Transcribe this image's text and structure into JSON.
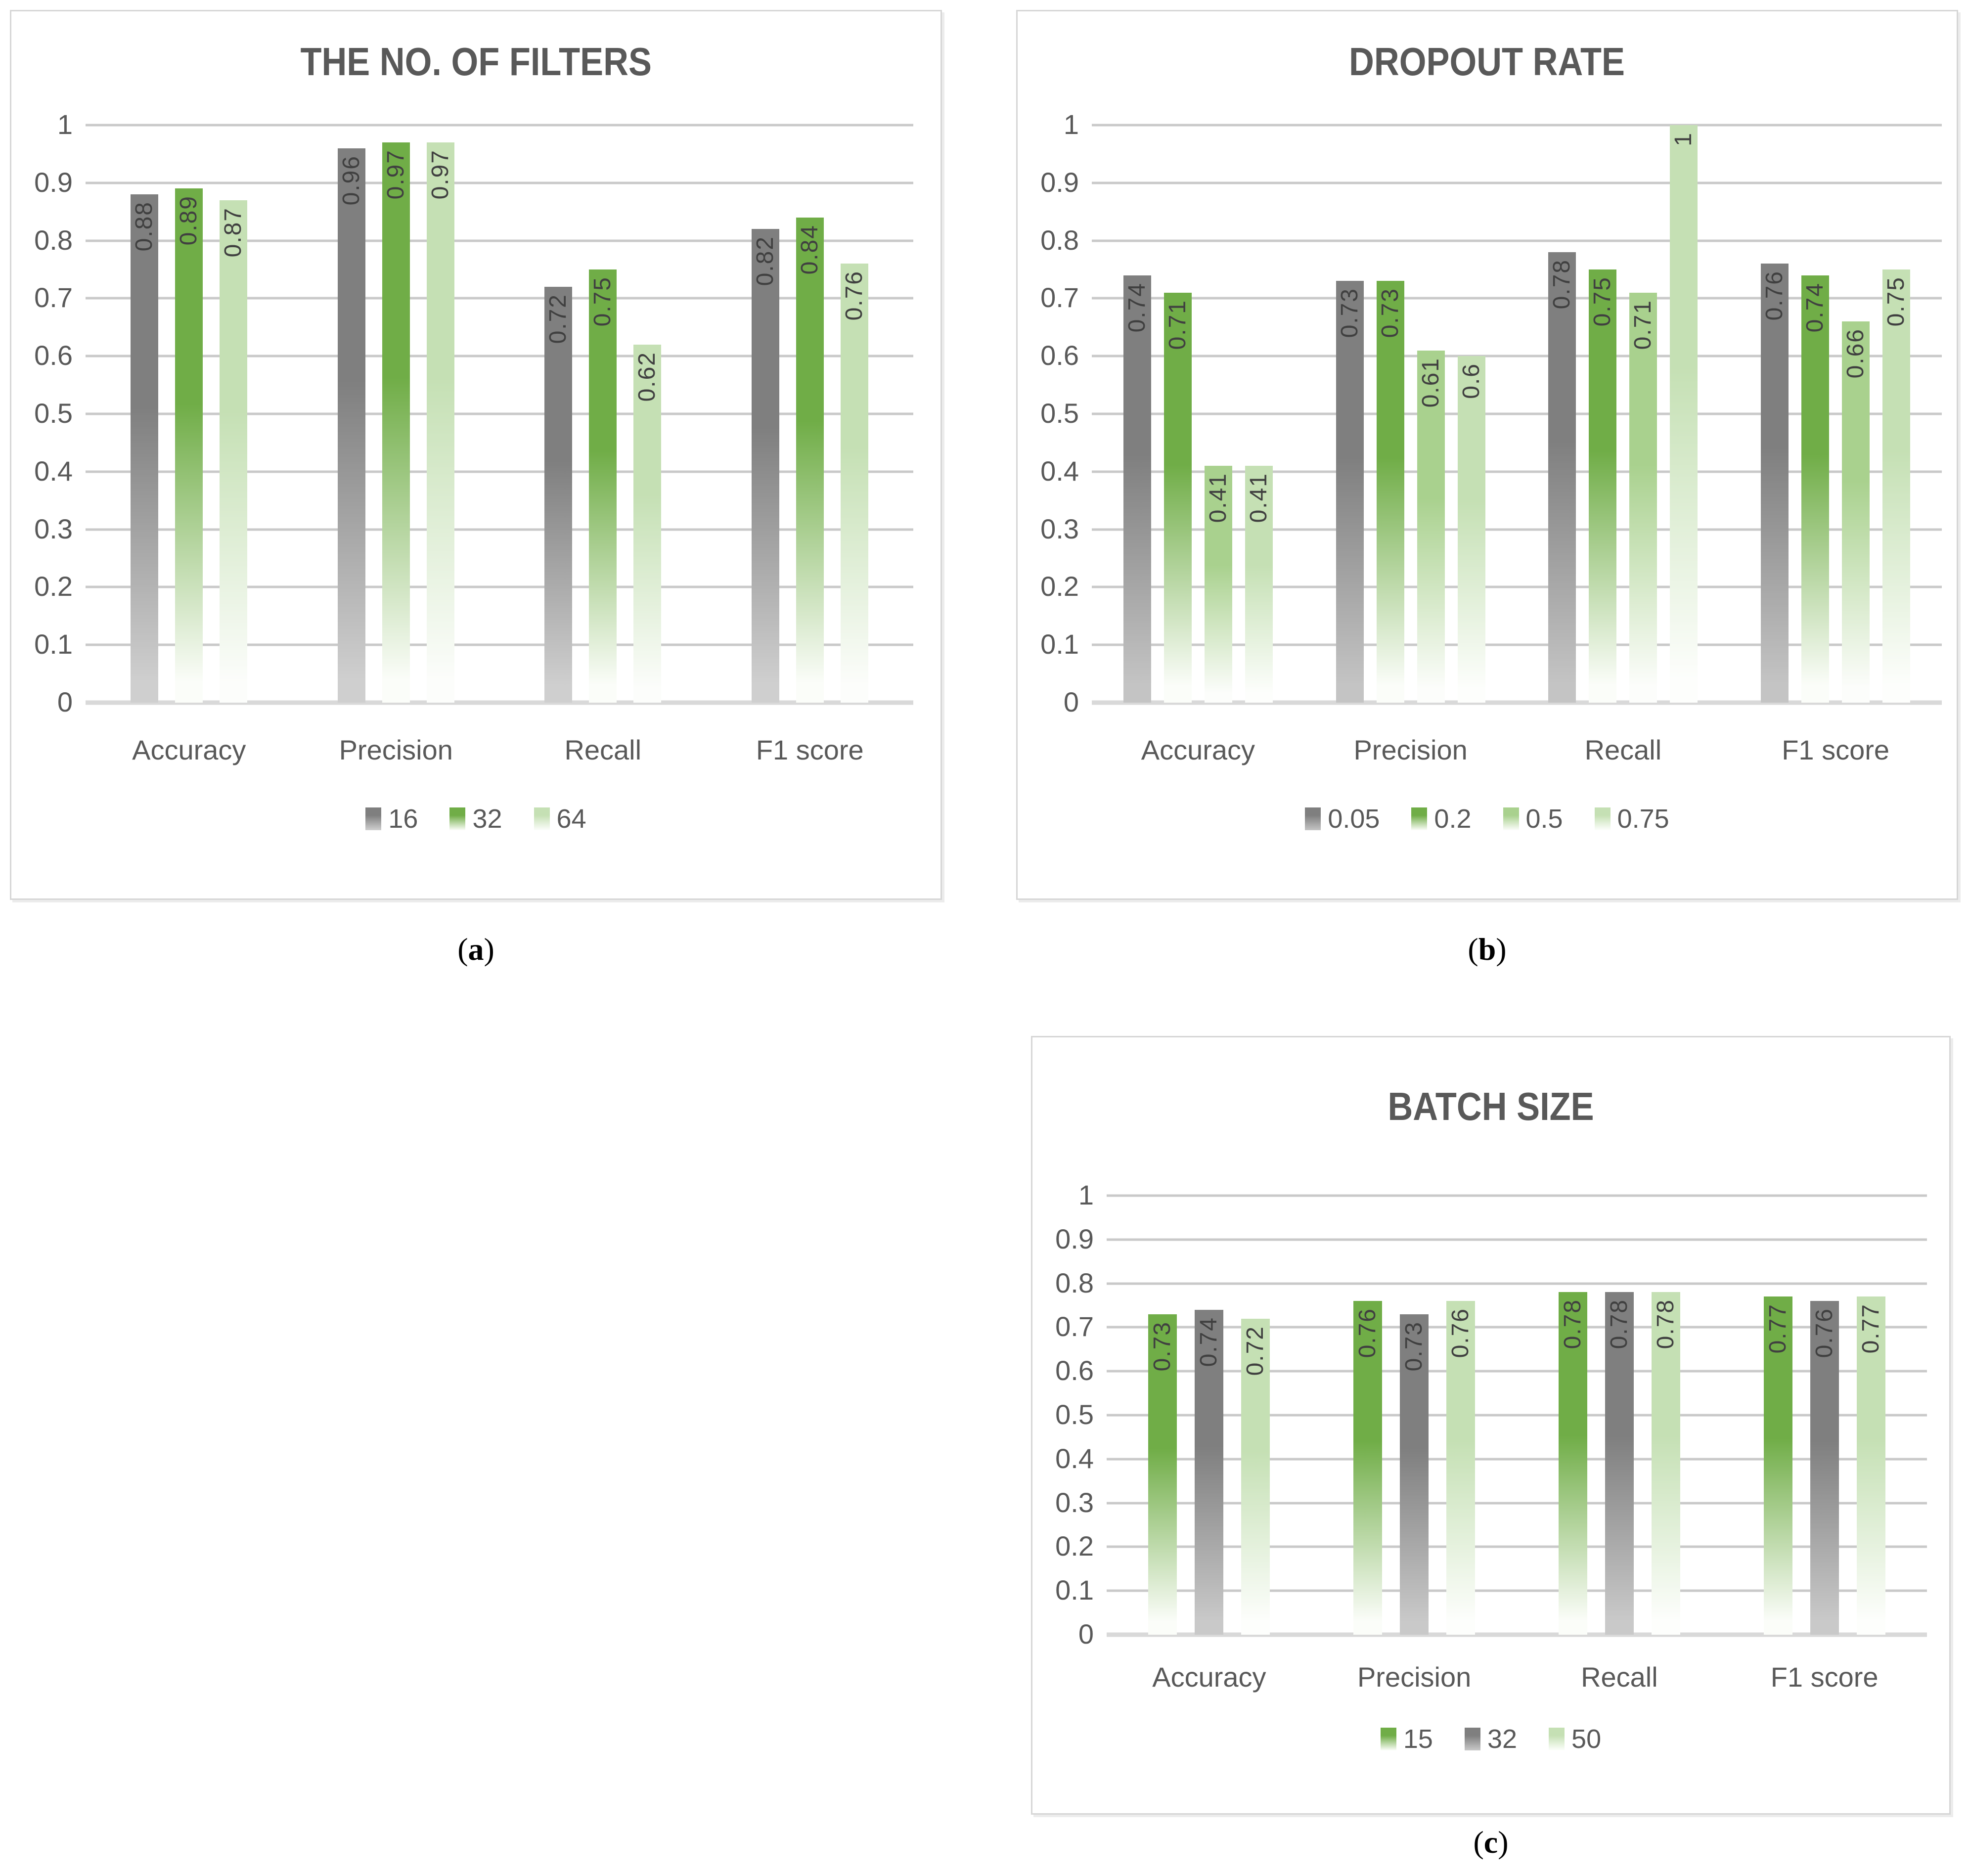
{
  "chart_data": [
    {
      "type": "bar",
      "title": "THE NO. OF FILTERS",
      "caption_open": "(",
      "caption_letter": "a",
      "caption_close": ")",
      "categories": [
        "Accuracy",
        "Precision",
        "Recall",
        "F1 score"
      ],
      "yticks": [
        "1",
        "0.9",
        "0.8",
        "0.7",
        "0.6",
        "0.5",
        "0.4",
        "0.3",
        "0.2",
        "0.1",
        "0"
      ],
      "ylim": [
        0,
        1
      ],
      "gridlines": true,
      "legend_position": "bottom",
      "value_labels": "rotated-90-inside-top",
      "series": [
        {
          "name": "16",
          "color": "#7f7f7f",
          "fade": "#cfcfcf",
          "values": [
            0.88,
            0.96,
            0.72,
            0.82
          ]
        },
        {
          "name": "32",
          "color": "#70ad47",
          "fade": "#fbfdf9",
          "values": [
            0.89,
            0.97,
            0.75,
            0.84
          ]
        },
        {
          "name": "64",
          "color": "#c5e0b4",
          "fade": "#fcfdfb",
          "values": [
            0.87,
            0.97,
            0.62,
            0.76
          ]
        }
      ]
    },
    {
      "type": "bar",
      "title": "DROPOUT RATE",
      "caption_open": "(",
      "caption_letter": "b",
      "caption_close": ")",
      "categories": [
        "Accuracy",
        "Precision",
        "Recall",
        "F1 score"
      ],
      "yticks": [
        "1",
        "0.9",
        "0.8",
        "0.7",
        "0.6",
        "0.5",
        "0.4",
        "0.3",
        "0.2",
        "0.1",
        "0"
      ],
      "ylim": [
        0,
        1
      ],
      "gridlines": true,
      "legend_position": "bottom",
      "value_labels": "rotated-90-inside-top",
      "series": [
        {
          "name": "0.05",
          "color": "#7f7f7f",
          "fade": "#c4c4c4",
          "values": [
            0.74,
            0.73,
            0.78,
            0.76
          ]
        },
        {
          "name": "0.2",
          "color": "#70ad47",
          "fade": "#fbfdf9",
          "values": [
            0.71,
            0.73,
            0.75,
            0.74
          ]
        },
        {
          "name": "0.5",
          "color": "#a9d18e",
          "fade": "#fcfdfb",
          "values": [
            0.41,
            0.61,
            0.71,
            0.66
          ]
        },
        {
          "name": "0.75",
          "color": "#c5e0b4",
          "fade": "#fdfefc",
          "values": [
            0.41,
            0.6,
            1,
            0.75
          ]
        }
      ]
    },
    {
      "type": "bar",
      "title": "BATCH SIZE",
      "caption_open": "(",
      "caption_letter": "c",
      "caption_close": ")",
      "categories": [
        "Accuracy",
        "Precision",
        "Recall",
        "F1 score"
      ],
      "yticks": [
        "1",
        "0.9",
        "0.8",
        "0.7",
        "0.6",
        "0.5",
        "0.4",
        "0.3",
        "0.2",
        "0.1",
        "0"
      ],
      "ylim": [
        0,
        1
      ],
      "gridlines": true,
      "legend_position": "bottom",
      "value_labels": "rotated-90-inside-top",
      "series": [
        {
          "name": "15",
          "color": "#70ad47",
          "fade": "#fbfdf9",
          "values": [
            0.73,
            0.76,
            0.78,
            0.77
          ]
        },
        {
          "name": "32",
          "color": "#7f7f7f",
          "fade": "#c9c9c9",
          "values": [
            0.74,
            0.73,
            0.78,
            0.76
          ]
        },
        {
          "name": "50",
          "color": "#c5e0b4",
          "fade": "#fdfefc",
          "values": [
            0.72,
            0.76,
            0.78,
            0.77
          ]
        }
      ]
    }
  ]
}
